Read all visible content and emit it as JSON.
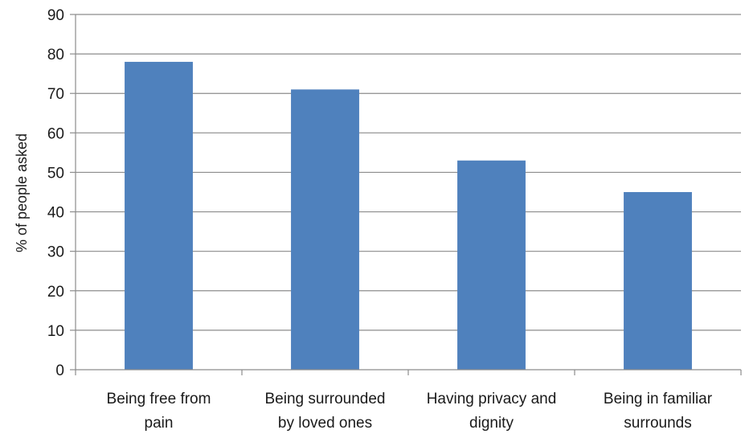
{
  "chart_data": {
    "type": "bar",
    "title": "",
    "xlabel": "",
    "ylabel": "% of people asked",
    "ylim": [
      0,
      90
    ],
    "yticks": [
      0,
      10,
      20,
      30,
      40,
      50,
      60,
      70,
      80,
      90
    ],
    "grid": true,
    "categories": [
      [
        "Being free from",
        "pain"
      ],
      [
        "Being surrounded",
        "by loved ones"
      ],
      [
        "Having privacy and",
        "dignity"
      ],
      [
        "Being in familiar",
        "surrounds"
      ]
    ],
    "values": [
      78,
      71,
      53,
      45
    ],
    "colors": {
      "bar": "#4f81bd",
      "grid": "#8c8c8c",
      "axis": "#8c8c8c"
    }
  }
}
